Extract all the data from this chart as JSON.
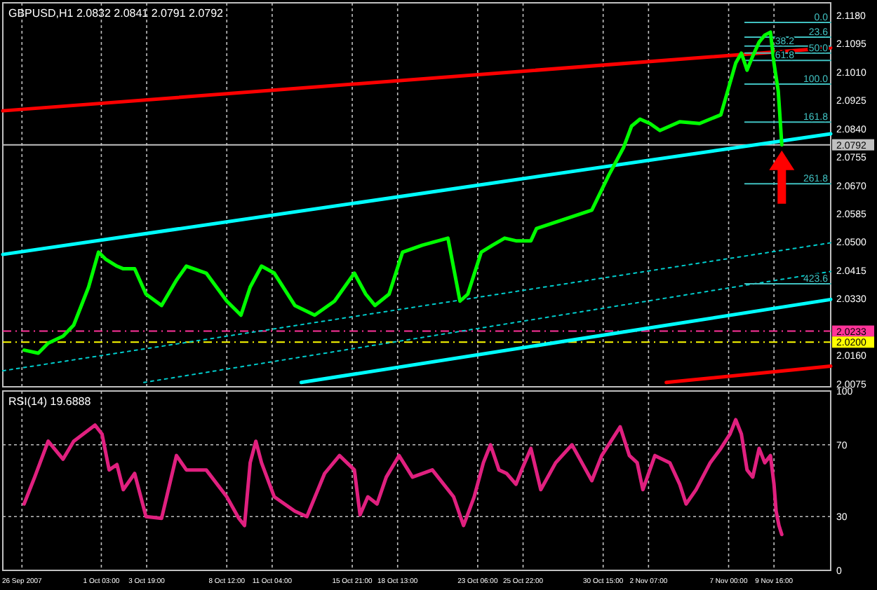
{
  "chart_data": [
    {
      "type": "line",
      "title": "GBPUSD,H1  2.0832 2.0841 2.0791 2.0792",
      "xlim": [
        "2007-09-25T08:00",
        "2007-11-13T00:00"
      ],
      "ylim": [
        2.0066,
        2.1218
      ],
      "tick_labels": "y",
      "grid": "x",
      "xticks": [
        "2007-09-26T11:00",
        "2007-10-01T03:00",
        "2007-10-03T19:00",
        "2007-10-08T12:00",
        "2007-10-11T04:00",
        "2007-10-15T21:00",
        "2007-10-18T13:00",
        "2007-10-23T06:00",
        "2007-10-25T22:00",
        "2007-10-30T15:00",
        "2007-11-02T07:00",
        "2007-11-07T00:00",
        "2007-11-09T16:00"
      ],
      "yticks": [
        {
          "value": 2.118,
          "label": "2.1180"
        },
        {
          "value": 2.1095,
          "label": "2.1095"
        },
        {
          "value": 2.101,
          "label": "2.1010"
        },
        {
          "value": 2.0925,
          "label": "2.0925"
        },
        {
          "value": 2.084,
          "label": "2.0840"
        },
        {
          "value": 2.0755,
          "label": "2.0755"
        },
        {
          "value": 2.067,
          "label": "2.0670"
        },
        {
          "value": 2.0585,
          "label": "2.0585"
        },
        {
          "value": 2.05,
          "label": "2.0500"
        },
        {
          "value": 2.0415,
          "label": "2.0415"
        },
        {
          "value": 2.033,
          "label": "2.0330"
        },
        {
          "value": 2.016,
          "label": "2.0160"
        },
        {
          "value": 2.0075,
          "label": "2.0075"
        }
      ],
      "ref_lines": [
        {
          "axis": "y",
          "value": 2.0792,
          "label": "2.0792",
          "color": "#c0c0c0",
          "line_style": "solid"
        },
        {
          "axis": "y",
          "value": 2.0233,
          "label": "2.0233",
          "color": "#ff3399",
          "line_style": "dashed"
        },
        {
          "axis": "y",
          "value": 2.02,
          "label": "2.0200",
          "color": "#ffff00",
          "line_style": "dashed"
        }
      ],
      "series": [
        {
          "color": "#ff0000",
          "x": [
            "2007-09-25T08:00",
            "2007-11-13T00:00"
          ],
          "values": [
            2.0894,
            2.1083
          ]
        },
        {
          "color": "#ff0000",
          "x": [
            "2007-11-03T08:00",
            "2007-11-13T00:00"
          ],
          "values": [
            2.0079,
            2.0128
          ]
        },
        {
          "color": "#00ffff",
          "x": [
            "2007-09-25T08:00",
            "2007-11-13T00:00"
          ],
          "values": [
            2.0463,
            2.0825
          ]
        },
        {
          "color": "#00ffff",
          "x": [
            "2007-10-12T21:00",
            "2007-11-13T00:00"
          ],
          "values": [
            2.0079,
            2.0328
          ]
        },
        {
          "color": "#00cccc",
          "line_style": "dotted",
          "x": [
            "2007-09-25T08:00",
            "2007-11-13T00:00"
          ],
          "values": [
            2.0114,
            2.0498
          ]
        },
        {
          "color": "#00cccc",
          "line_style": "dotted",
          "x": [
            "2007-10-03T15:00",
            "2007-11-13T00:00"
          ],
          "values": [
            2.0079,
            2.0412
          ]
        },
        {
          "name": "0.0",
          "color": "#40c0c0",
          "x": [
            "2007-11-07T23:00",
            "2007-11-13T00:00"
          ],
          "values": [
            2.1159,
            2.1159
          ]
        },
        {
          "name": "23.6",
          "color": "#40c0c0",
          "x": [
            "2007-11-07T23:00",
            "2007-11-13T00:00"
          ],
          "values": [
            2.1115,
            2.1115
          ]
        },
        {
          "name": "38.2",
          "color": "#40c0c0",
          "x": [
            "2007-11-07T23:00",
            "2007-11-13T00:00"
          ],
          "values": [
            2.1088,
            2.1088
          ]
        },
        {
          "name": "50.0",
          "color": "#40c0c0",
          "x": [
            "2007-11-07T23:00",
            "2007-11-13T00:00"
          ],
          "values": [
            2.1067,
            2.1067
          ]
        },
        {
          "name": "61.8",
          "color": "#40c0c0",
          "x": [
            "2007-11-07T23:00",
            "2007-11-13T00:00"
          ],
          "values": [
            2.1045,
            2.1045
          ]
        },
        {
          "name": "100.0",
          "color": "#40c0c0",
          "x": [
            "2007-11-07T23:00",
            "2007-11-13T00:00"
          ],
          "values": [
            2.0974,
            2.0974
          ]
        },
        {
          "name": "161.8",
          "color": "#40c0c0",
          "x": [
            "2007-11-07T23:00",
            "2007-11-13T00:00"
          ],
          "values": [
            2.086,
            2.086
          ]
        },
        {
          "name": "261.8",
          "color": "#40c0c0",
          "x": [
            "2007-11-07T23:00",
            "2007-11-13T00:00"
          ],
          "values": [
            2.0675,
            2.0675
          ]
        },
        {
          "name": "423.6",
          "color": "#40c0c0",
          "x": [
            "2007-11-07T23:00",
            "2007-11-13T00:00"
          ],
          "values": [
            2.0375,
            2.0375
          ]
        },
        {
          "color": "#00ff00",
          "x": [
            "2007-09-26T14:00",
            "2007-09-27T10:00",
            "2007-09-28T00:00",
            "2007-09-28T21:00",
            "2007-09-29T12:00",
            "2007-09-30T09:00",
            "2007-09-30T23:00",
            "2007-10-01T09:00",
            "2007-10-02T01:00",
            "2007-10-02T10:00",
            "2007-10-03T02:00",
            "2007-10-03T18:00",
            "2007-10-04T16:00",
            "2007-10-05T13:00",
            "2007-10-06T03:00",
            "2007-10-07T07:00",
            "2007-10-08T12:00",
            "2007-10-09T08:00",
            "2007-10-09T21:00",
            "2007-10-10T13:00",
            "2007-10-11T07:00",
            "2007-10-12T12:00",
            "2007-10-13T16:00",
            "2007-10-14T20:00",
            "2007-10-16T00:00",
            "2007-10-16T16:00",
            "2007-10-17T05:00",
            "2007-10-18T01:00",
            "2007-10-18T20:00",
            "2007-10-20T00:00",
            "2007-10-21T12:00",
            "2007-10-22T05:00",
            "2007-10-22T16:00",
            "2007-10-23T11:00",
            "2007-10-24T03:00",
            "2007-10-24T20:00",
            "2007-10-25T12:00",
            "2007-10-26T09:00",
            "2007-10-26T17:00",
            "2007-10-29T23:00",
            "2007-10-30T23:00",
            "2007-10-31T20:00",
            "2007-11-01T07:00",
            "2007-11-01T19:00",
            "2007-11-02T09:00",
            "2007-11-02T23:00",
            "2007-11-04T03:00",
            "2007-11-05T07:00",
            "2007-11-06T13:00",
            "2007-11-07T10:00",
            "2007-11-07T18:00",
            "2007-11-08T02:00",
            "2007-11-08T10:00",
            "2007-11-08T19:00",
            "2007-11-09T03:00",
            "2007-11-09T11:00",
            "2007-11-09T16:00",
            "2007-11-09T22:00",
            "2007-11-10T00:00",
            "2007-11-10T03:00"
          ],
          "values": [
            2.0176,
            2.0167,
            2.0197,
            2.0218,
            2.0251,
            2.0365,
            2.047,
            2.0449,
            2.0428,
            2.042,
            2.042,
            2.0344,
            2.031,
            2.0386,
            2.0428,
            2.0407,
            2.0323,
            2.0281,
            2.0365,
            2.0428,
            2.0407,
            2.031,
            2.0281,
            2.0323,
            2.0407,
            2.0344,
            2.031,
            2.0344,
            2.047,
            2.0491,
            2.0512,
            2.0323,
            2.0344,
            2.047,
            2.0491,
            2.0512,
            2.0504,
            2.0504,
            2.0541,
            2.0596,
            2.0701,
            2.0785,
            2.0848,
            2.0869,
            2.0856,
            2.0835,
            2.0861,
            2.0856,
            2.0882,
            2.1037,
            2.1067,
            2.1016,
            2.1058,
            2.11,
            2.1121,
            2.113,
            2.1037,
            2.0953,
            2.089,
            2.0792
          ]
        }
      ]
    },
    {
      "type": "line",
      "title": "RSI(14) 19.6888",
      "xlim": [
        "2007-09-25T08:00",
        "2007-11-13T00:00"
      ],
      "ylim": [
        0,
        100
      ],
      "grid": true,
      "xticks": [
        {
          "value": "2007-09-26T11:00",
          "label": "26 Sep 2007"
        },
        {
          "value": "2007-10-01T03:00",
          "label": "1 Oct 03:00"
        },
        {
          "value": "2007-10-03T19:00",
          "label": "3 Oct 19:00"
        },
        {
          "value": "2007-10-08T12:00",
          "label": "8 Oct 12:00"
        },
        {
          "value": "2007-10-11T04:00",
          "label": "11 Oct 04:00"
        },
        {
          "value": "2007-10-15T21:00",
          "label": "15 Oct 21:00"
        },
        {
          "value": "2007-10-18T13:00",
          "label": "18 Oct 13:00"
        },
        {
          "value": "2007-10-23T06:00",
          "label": "23 Oct 06:00"
        },
        {
          "value": "2007-10-25T22:00",
          "label": "25 Oct 22:00"
        },
        {
          "value": "2007-10-30T15:00",
          "label": "30 Oct 15:00"
        },
        {
          "value": "2007-11-02T07:00",
          "label": "2 Nov 07:00"
        },
        {
          "value": "2007-11-07T00:00",
          "label": "7 Nov 00:00"
        },
        {
          "value": "2007-11-09T16:00",
          "label": "9 Nov 16:00"
        }
      ],
      "yticks": [
        0,
        30,
        70,
        100
      ],
      "series": [
        {
          "color": "#e0207f",
          "x": [
            "2007-09-26T14:00",
            "2007-09-27T05:00",
            "2007-09-28T00:00",
            "2007-09-28T21:00",
            "2007-09-29T12:00",
            "2007-09-30T18:00",
            "2007-10-01T04:00",
            "2007-10-01T14:00",
            "2007-10-02T01:00",
            "2007-10-02T10:00",
            "2007-10-03T02:00",
            "2007-10-03T18:00",
            "2007-10-04T16:00",
            "2007-10-05T13:00",
            "2007-10-06T03:00",
            "2007-10-07T07:00",
            "2007-10-08T12:00",
            "2007-10-09T05:00",
            "2007-10-09T13:00",
            "2007-10-09T21:00",
            "2007-10-10T05:00",
            "2007-10-10T13:00",
            "2007-10-11T07:00",
            "2007-10-12T12:00",
            "2007-10-13T05:00",
            "2007-10-14T06:00",
            "2007-10-15T03:00",
            "2007-10-16T00:00",
            "2007-10-16T08:00",
            "2007-10-16T19:00",
            "2007-10-17T08:00",
            "2007-10-17T21:00",
            "2007-10-18T15:00",
            "2007-10-19T10:00",
            "2007-10-20T14:00",
            "2007-10-21T20:00",
            "2007-10-22T10:00",
            "2007-10-23T01:00",
            "2007-10-23T14:00",
            "2007-10-24T00:00",
            "2007-10-24T12:00",
            "2007-10-24T23:00",
            "2007-10-25T12:00",
            "2007-10-25T20:00",
            "2007-10-26T09:00",
            "2007-10-26T23:00",
            "2007-10-27T20:00",
            "2007-10-28T19:00",
            "2007-10-29T09:00",
            "2007-10-29T23:00",
            "2007-10-30T13:00",
            "2007-10-31T02:00",
            "2007-10-31T15:00",
            "2007-11-01T04:00",
            "2007-11-01T15:00",
            "2007-11-01T23:00",
            "2007-11-02T16:00",
            "2007-11-03T13:00",
            "2007-11-04T03:00",
            "2007-11-04T12:00",
            "2007-11-05T02:00",
            "2007-11-05T22:00",
            "2007-11-06T13:00",
            "2007-11-07T02:00",
            "2007-11-07T10:00",
            "2007-11-07T18:00",
            "2007-11-08T02:00",
            "2007-11-08T10:00",
            "2007-11-08T19:00",
            "2007-11-09T03:00",
            "2007-11-09T11:00",
            "2007-11-09T16:00",
            "2007-11-09T19:00",
            "2007-11-09T23:00",
            "2007-11-10T03:00"
          ],
          "values": [
            37,
            52,
            72,
            62,
            72,
            81,
            76,
            56,
            59,
            45,
            54,
            30,
            29,
            64,
            56,
            56,
            41,
            29,
            25,
            60,
            72,
            60,
            41,
            33,
            30,
            54,
            64,
            56,
            31,
            41,
            37,
            52,
            64,
            52,
            56,
            41,
            25,
            41,
            60,
            70,
            56,
            54,
            48,
            56,
            68,
            45,
            60,
            70,
            60,
            50,
            64,
            72,
            80,
            64,
            60,
            45,
            64,
            60,
            48,
            37,
            45,
            60,
            68,
            76,
            84,
            76,
            56,
            52,
            68,
            60,
            64,
            48,
            33,
            25,
            20
          ]
        }
      ]
    }
  ]
}
